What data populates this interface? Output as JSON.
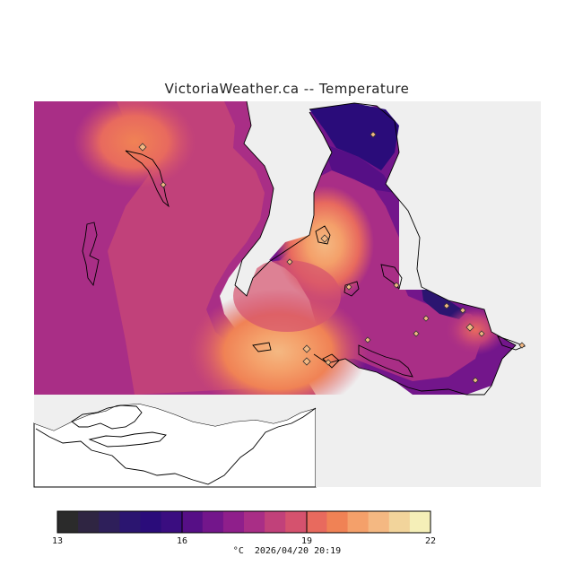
{
  "title": "VictoriaWeather.ca -- Temperature",
  "legend": {
    "unit": "°C",
    "timestamp": "2026/04/20 20:19",
    "min": 13,
    "max": 22,
    "tick_labels": [
      "13",
      "16",
      "19",
      "22"
    ],
    "colors": [
      "#2b2b2b",
      "#2f2542",
      "#2e1f5a",
      "#2b1570",
      "#2a0c7a",
      "#3a0d80",
      "#560f86",
      "#73168b",
      "#8f1f8b",
      "#a92e86",
      "#c1417a",
      "#d5526e",
      "#e86a5e",
      "#f08255",
      "#f4a06a",
      "#f4b882",
      "#f2d49b",
      "#f5efb8"
    ]
  },
  "map": {
    "background_color": "#efefef",
    "land_color": "#ffffff",
    "stations": 18
  }
}
